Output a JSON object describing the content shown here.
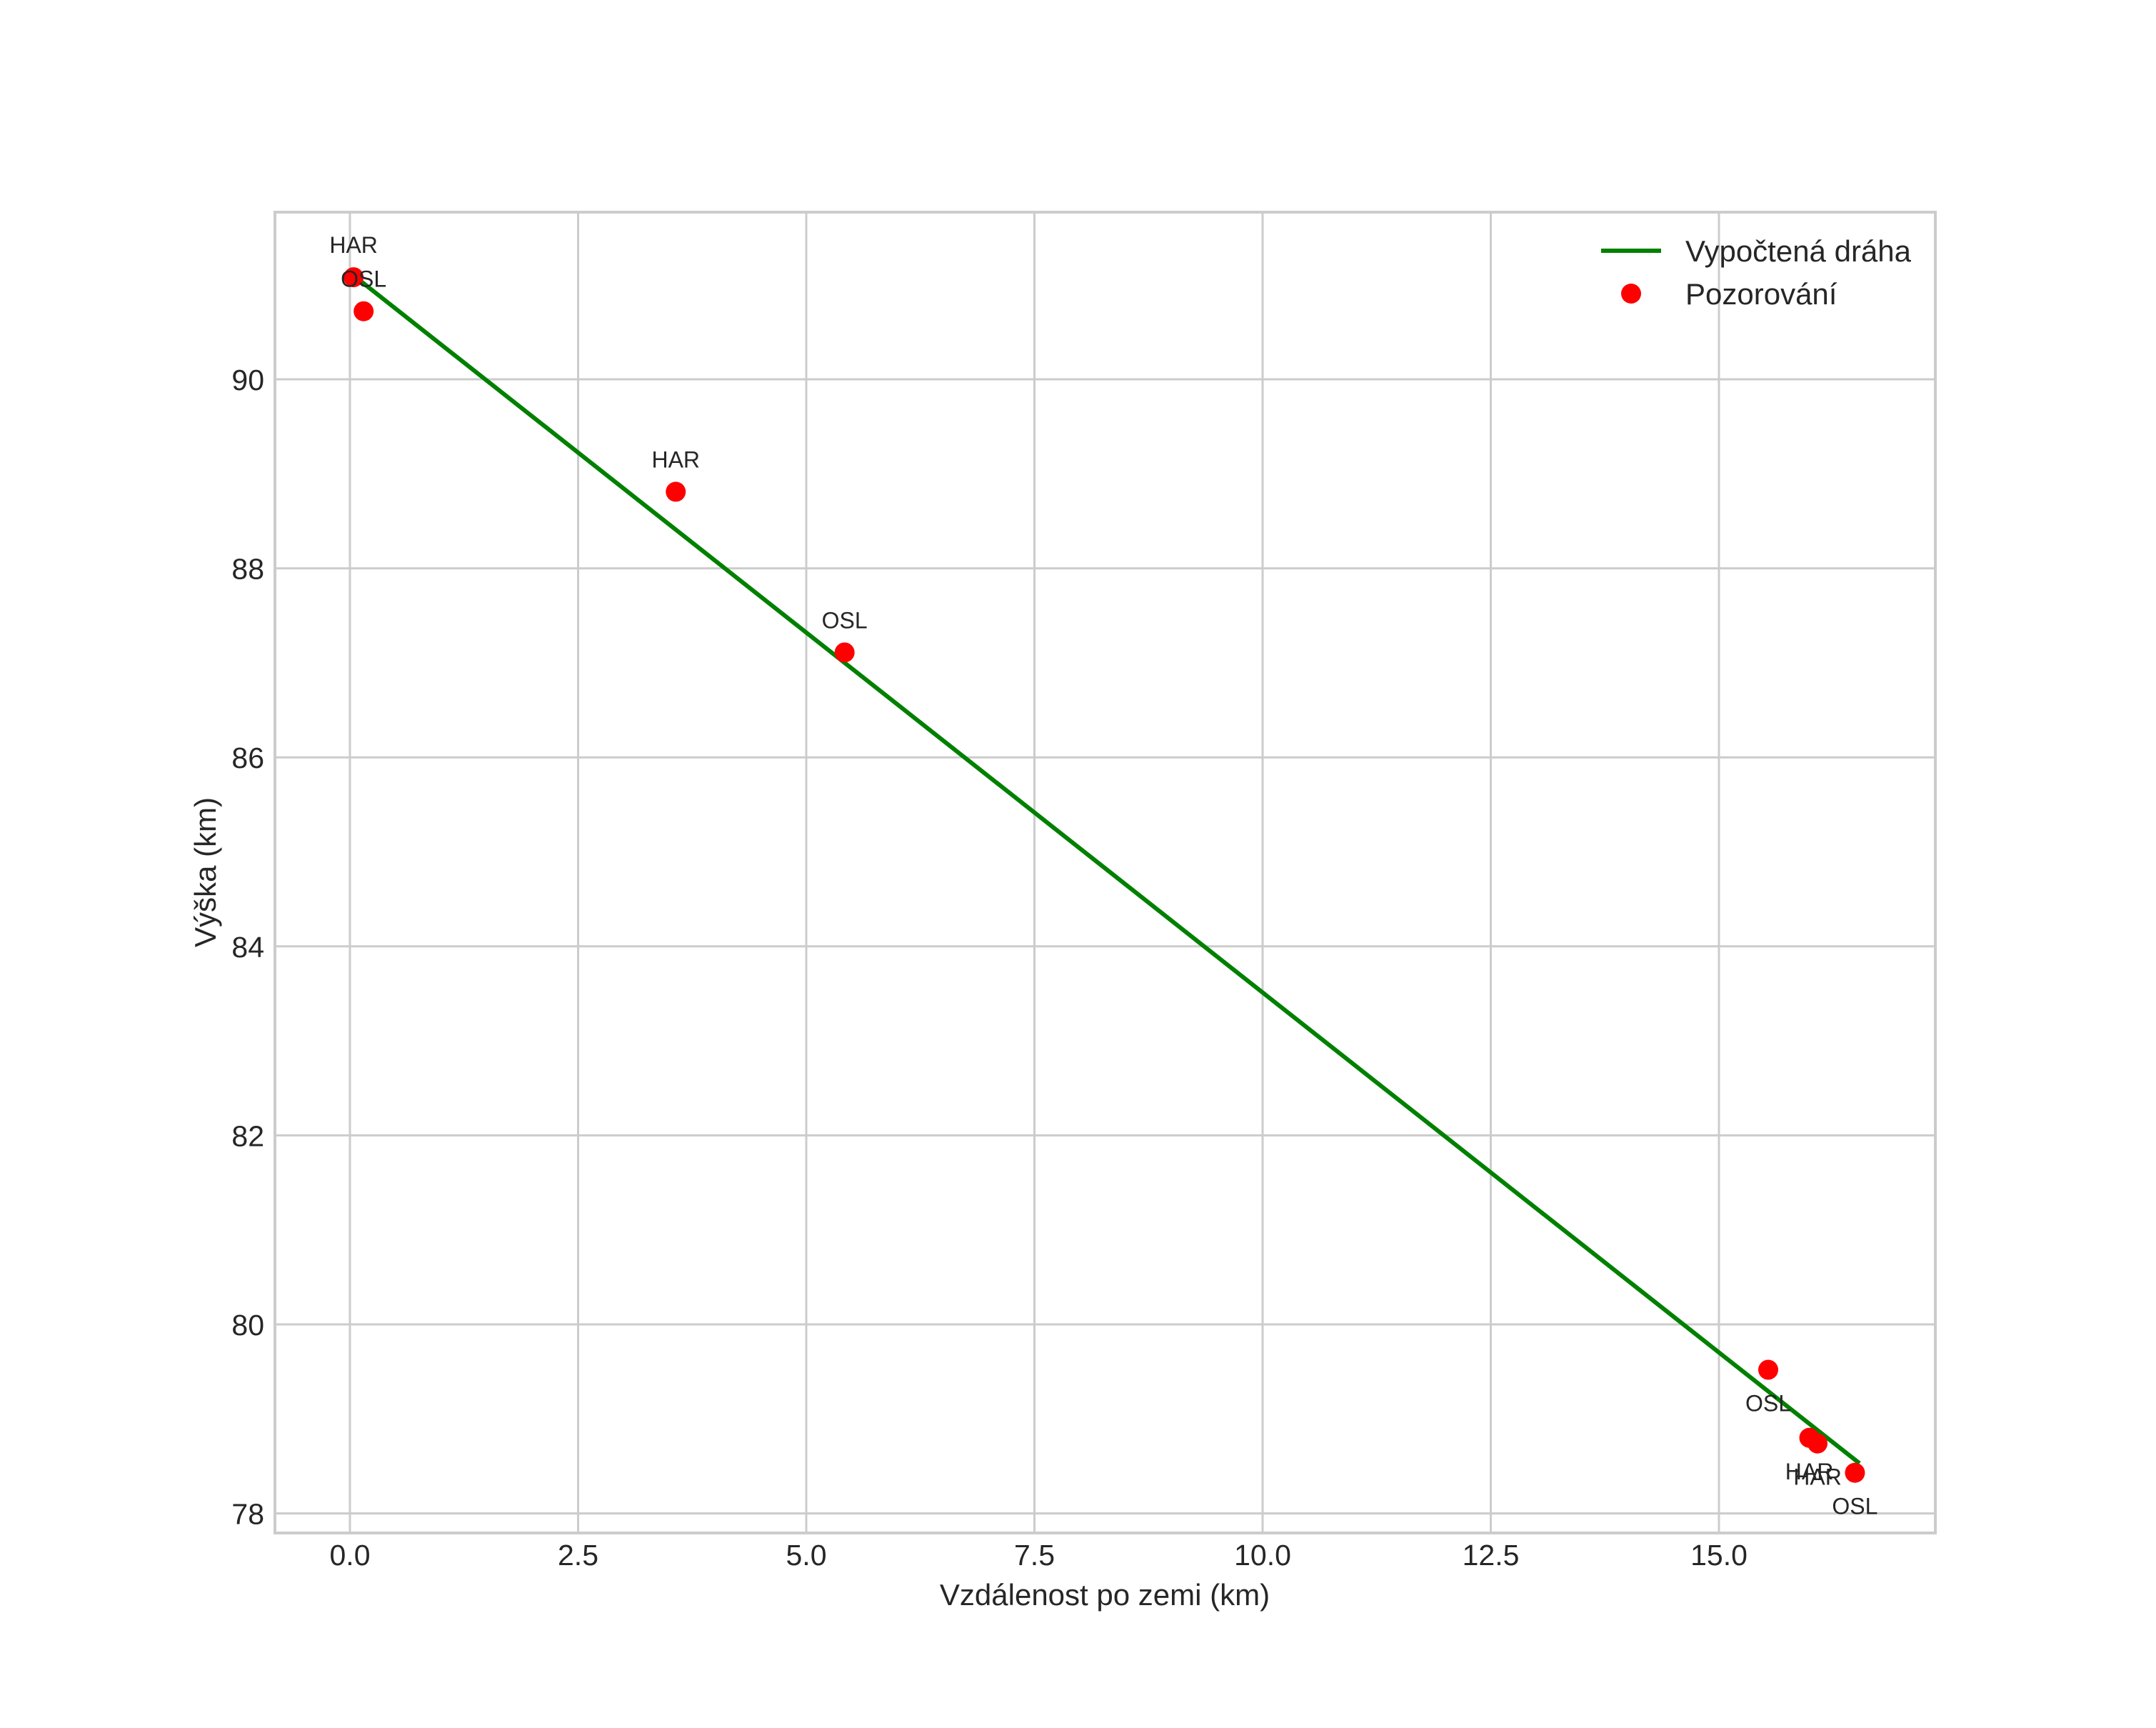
{
  "chart_data": {
    "type": "scatter",
    "title": "",
    "xlabel": "Vzdálenost po zemi (km)",
    "ylabel": "Výška (km)",
    "xlim": [
      -0.82,
      17.37
    ],
    "ylim": [
      77.8,
      91.77
    ],
    "grid": true,
    "legend_position": "upper right",
    "x_ticks": [
      0.0,
      2.5,
      5.0,
      7.5,
      10.0,
      12.5,
      15.0
    ],
    "x_tick_labels": [
      "0.0",
      "2.5",
      "5.0",
      "7.5",
      "10.0",
      "12.5",
      "15.0"
    ],
    "y_ticks": [
      78,
      80,
      82,
      84,
      86,
      88,
      90
    ],
    "y_tick_labels": [
      "78",
      "80",
      "82",
      "84",
      "86",
      "88",
      "90"
    ],
    "series": [
      {
        "name": "Vypočtená dráha",
        "type": "line",
        "color": "#008000",
        "x": [
          0.13,
          16.54
        ],
        "y": [
          91.03,
          78.53
        ]
      },
      {
        "name": "Pozorování",
        "type": "scatter",
        "color": "#ff0000",
        "points": [
          {
            "x": 0.04,
            "y": 91.08,
            "label": "HAR",
            "label_pos": "above"
          },
          {
            "x": 0.15,
            "y": 90.72,
            "label": "OSL",
            "label_pos": "above"
          },
          {
            "x": 3.57,
            "y": 88.81,
            "label": "HAR",
            "label_pos": "above"
          },
          {
            "x": 5.42,
            "y": 87.11,
            "label": "OSL",
            "label_pos": "above"
          },
          {
            "x": 15.54,
            "y": 79.52,
            "label": "OSL",
            "label_pos": "below"
          },
          {
            "x": 15.99,
            "y": 78.8,
            "label": "HAR",
            "label_pos": "below"
          },
          {
            "x": 16.08,
            "y": 78.74,
            "label": "HAR",
            "label_pos": "below"
          },
          {
            "x": 16.49,
            "y": 78.43,
            "label": "OSL",
            "label_pos": "below"
          }
        ]
      }
    ]
  },
  "legend": {
    "items": [
      {
        "label": "Vypočtená dráha",
        "symbol": "line",
        "color": "#008000"
      },
      {
        "label": "Pozorování",
        "symbol": "circle",
        "color": "#ff0000"
      }
    ]
  },
  "colors": {
    "grid": "#cccccc",
    "text": "#262626",
    "trajectory": "#008000",
    "observation": "#ff0000"
  }
}
